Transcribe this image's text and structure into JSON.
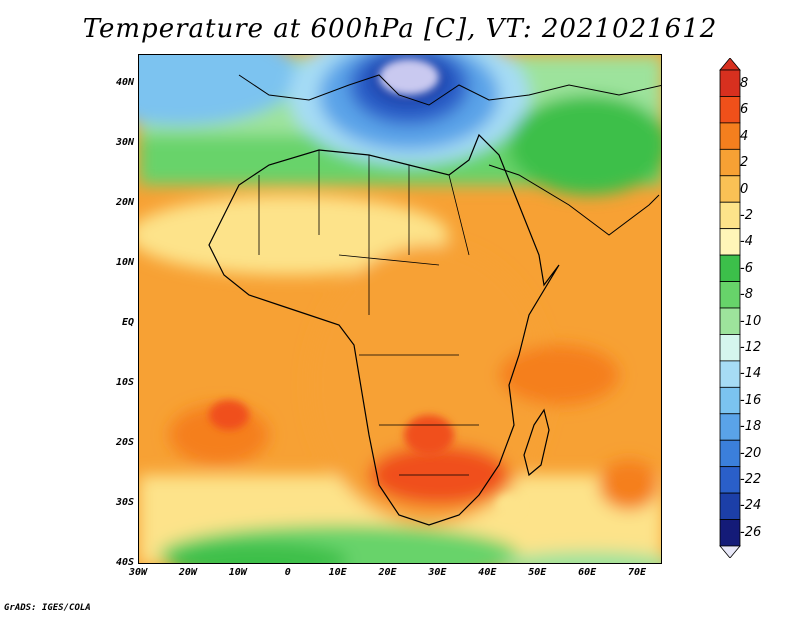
{
  "title": "Temperature at 600hPa [C], VT: 2021021612",
  "credit": "GrADS: IGES/COLA",
  "lat_labels": [
    "40N",
    "30N",
    "20N",
    "10N",
    "EQ",
    "10S",
    "20S",
    "30S",
    "40S"
  ],
  "lon_labels": [
    "30W",
    "20W",
    "10W",
    "0",
    "10E",
    "20E",
    "30E",
    "40E",
    "50E",
    "60E",
    "70E"
  ],
  "colorbar": {
    "labels": [
      "8",
      "6",
      "4",
      "2",
      "0",
      "-2",
      "-4",
      "-6",
      "-8",
      "-10",
      "-12",
      "-14",
      "-16",
      "-18",
      "-20",
      "-22",
      "-24",
      "-26"
    ],
    "colors": [
      "#d7301f",
      "#f0501a",
      "#f57f1e",
      "#f7a134",
      "#f9c155",
      "#fde38a",
      "#fff6b8",
      "#3cbf4a",
      "#67d36a",
      "#9de39c",
      "#d5f6ee",
      "#a6dcf5",
      "#7bc3f0",
      "#5aa3e8",
      "#3b7fdb",
      "#2a5fc9",
      "#1c3fa8",
      "#141b78"
    ]
  },
  "map": {
    "extent_lon": [
      -30,
      75
    ],
    "extent_lat": [
      -40,
      45
    ]
  }
}
